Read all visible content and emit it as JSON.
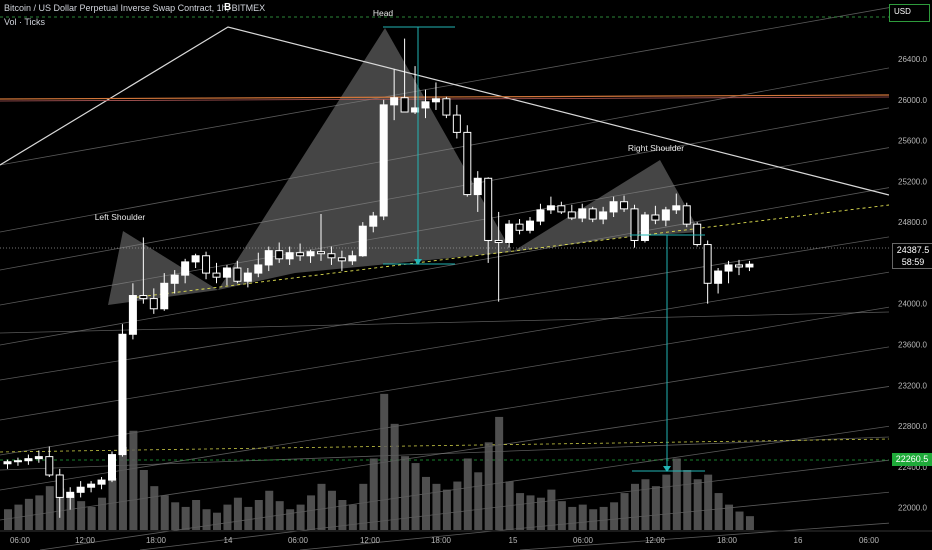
{
  "header": {
    "title": "Bitcoin / US Dollar Perpetual Inverse Swap Contract, 1h, BITMEX",
    "indicator": "Vol · Ticks",
    "event_marker": "B"
  },
  "price_axis": {
    "currency": "USD",
    "current_price": "24387.5",
    "countdown": "58:59",
    "target_price": "22260.5"
  },
  "colors": {
    "background": "#000000",
    "candle": "#ffffff",
    "volume": "#5d5d5d",
    "target_line": "#1faa3a",
    "measure": "#22b5b5",
    "neckline": "#e0e050",
    "pattern_fill": "#9a9a9a"
  },
  "chart_data": {
    "type": "candlestick",
    "title": "Bitcoin / US Dollar Perpetual Inverse Swap Contract, 1h, BITMEX",
    "y_ticks": [
      22000,
      22400,
      22800,
      23200,
      23600,
      24000,
      24400,
      24800,
      25200,
      25600,
      26000,
      26400
    ],
    "y_ticks_labels": [
      "22000.0",
      "22400.0",
      "22800.0",
      "23200.0",
      "23600.0",
      "24000.0",
      "24400.0",
      "24800.0",
      "25200.0",
      "25600.0",
      "26000.0",
      "26400.0"
    ],
    "x_tick_labels": [
      "06:00",
      "12:00",
      "18:00",
      "14",
      "06:00",
      "12:00",
      "18:00",
      "15",
      "06:00",
      "12:00",
      "18:00",
      "16",
      "06:00"
    ],
    "ylim": [
      21800,
      26900
    ],
    "pattern": "Head and Shoulders",
    "annotations": [
      "Left Shoulder",
      "Head",
      "Right Shoulder"
    ],
    "candles": [
      [
        22430,
        22470,
        22380,
        22450
      ],
      [
        22450,
        22490,
        22410,
        22460
      ],
      [
        22460,
        22520,
        22420,
        22480
      ],
      [
        22480,
        22560,
        22440,
        22500
      ],
      [
        22500,
        22600,
        22300,
        22320
      ],
      [
        22320,
        22380,
        21900,
        22100
      ],
      [
        22100,
        22200,
        21980,
        22150
      ],
      [
        22150,
        22260,
        22100,
        22200
      ],
      [
        22200,
        22260,
        22150,
        22230
      ],
      [
        22230,
        22300,
        22180,
        22270
      ],
      [
        22270,
        22550,
        22250,
        22520
      ],
      [
        22520,
        23800,
        22500,
        23700
      ],
      [
        23700,
        24200,
        23650,
        24080
      ],
      [
        24080,
        24650,
        24000,
        24050
      ],
      [
        24050,
        24150,
        23900,
        23950
      ],
      [
        23950,
        24300,
        23930,
        24200
      ],
      [
        24200,
        24330,
        24100,
        24280
      ],
      [
        24280,
        24440,
        24200,
        24410
      ],
      [
        24410,
        24490,
        24350,
        24470
      ],
      [
        24470,
        24510,
        24240,
        24300
      ],
      [
        24300,
        24400,
        24200,
        24260
      ],
      [
        24260,
        24380,
        24180,
        24350
      ],
      [
        24350,
        24420,
        24200,
        24220
      ],
      [
        24220,
        24350,
        24160,
        24300
      ],
      [
        24300,
        24500,
        24260,
        24380
      ],
      [
        24380,
        24560,
        24320,
        24520
      ],
      [
        24520,
        24600,
        24400,
        24440
      ],
      [
        24440,
        24560,
        24380,
        24500
      ],
      [
        24500,
        24590,
        24420,
        24470
      ],
      [
        24470,
        24530,
        24400,
        24510
      ],
      [
        24510,
        24880,
        24420,
        24490
      ],
      [
        24490,
        24560,
        24380,
        24450
      ],
      [
        24450,
        24520,
        24320,
        24420
      ],
      [
        24420,
        24520,
        24380,
        24470
      ],
      [
        24470,
        24800,
        24460,
        24760
      ],
      [
        24760,
        24900,
        24700,
        24860
      ],
      [
        24860,
        26000,
        24820,
        25950
      ],
      [
        25950,
        26300,
        25800,
        26020
      ],
      [
        26020,
        26600,
        25880,
        25880
      ],
      [
        25880,
        26330,
        25860,
        25920
      ],
      [
        25920,
        26100,
        25820,
        25980
      ],
      [
        25980,
        26170,
        25900,
        26010
      ],
      [
        26010,
        26030,
        25820,
        25850
      ],
      [
        25850,
        25950,
        25620,
        25680
      ],
      [
        25680,
        25750,
        25050,
        25070
      ],
      [
        25070,
        25300,
        24900,
        25230
      ],
      [
        25230,
        25240,
        24400,
        24620
      ],
      [
        24620,
        24900,
        24020,
        24600
      ],
      [
        24600,
        24820,
        24550,
        24780
      ],
      [
        24780,
        24830,
        24680,
        24720
      ],
      [
        24720,
        24850,
        24690,
        24810
      ],
      [
        24810,
        24980,
        24770,
        24920
      ],
      [
        24920,
        25050,
        24880,
        24960
      ],
      [
        24960,
        25000,
        24880,
        24900
      ],
      [
        24900,
        24970,
        24820,
        24840
      ],
      [
        24840,
        24980,
        24800,
        24930
      ],
      [
        24930,
        24950,
        24800,
        24830
      ],
      [
        24830,
        24950,
        24780,
        24900
      ],
      [
        24900,
        25050,
        24850,
        25000
      ],
      [
        25000,
        25060,
        24900,
        24930
      ],
      [
        24930,
        24970,
        24550,
        24620
      ],
      [
        24620,
        24900,
        24600,
        24870
      ],
      [
        24870,
        24960,
        24780,
        24820
      ],
      [
        24820,
        24950,
        24760,
        24920
      ],
      [
        24920,
        25080,
        24880,
        24960
      ],
      [
        24960,
        24990,
        24750,
        24780
      ],
      [
        24780,
        24800,
        24560,
        24580
      ],
      [
        24580,
        24620,
        24000,
        24200
      ],
      [
        24200,
        24350,
        24100,
        24320
      ],
      [
        24320,
        24420,
        24200,
        24380
      ],
      [
        24380,
        24430,
        24280,
        24360
      ],
      [
        24360,
        24420,
        24320,
        24387.5
      ]
    ],
    "volumes": [
      18,
      22,
      27,
      30,
      38,
      36,
      31,
      25,
      20,
      28,
      45,
      72,
      86,
      52,
      38,
      30,
      24,
      20,
      26,
      18,
      15,
      22,
      28,
      20,
      26,
      34,
      25,
      18,
      22,
      30,
      40,
      34,
      26,
      22,
      40,
      62,
      118,
      92,
      64,
      58,
      46,
      40,
      35,
      42,
      62,
      50,
      76,
      98,
      42,
      32,
      30,
      28,
      35,
      25,
      20,
      22,
      18,
      20,
      24,
      32,
      40,
      44,
      38,
      48,
      62,
      52,
      44,
      48,
      32,
      22,
      16,
      12
    ]
  }
}
